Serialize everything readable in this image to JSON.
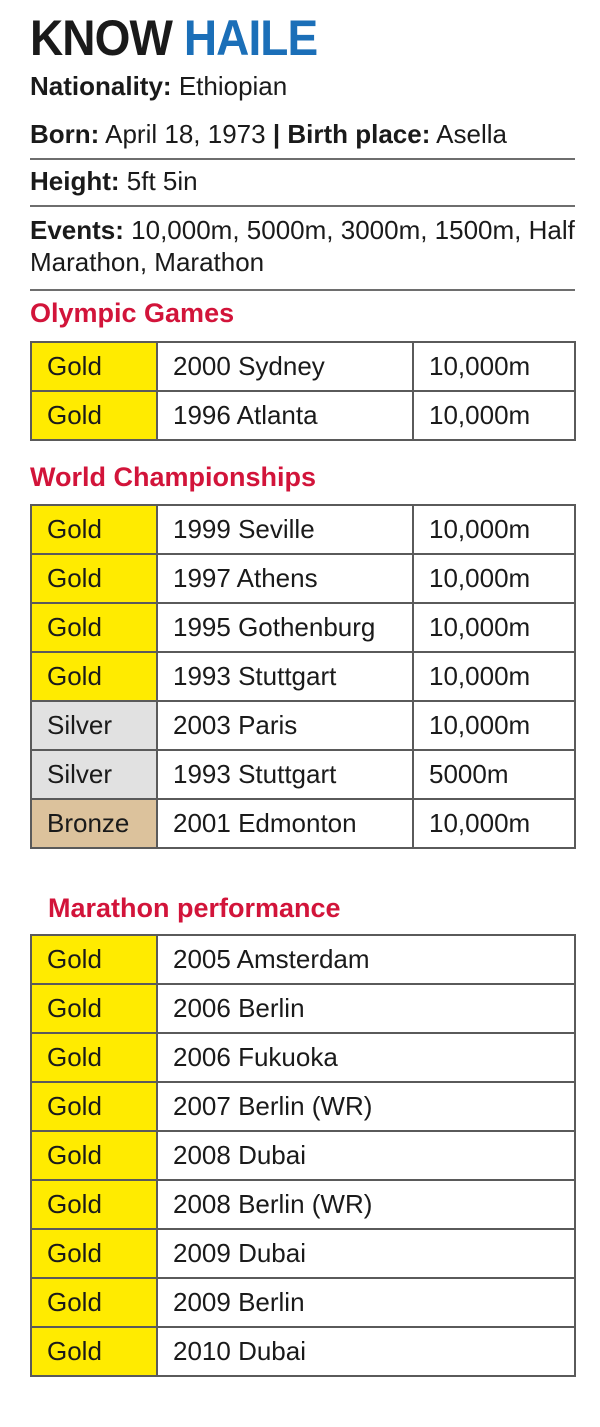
{
  "header": {
    "title_part1": "KNOW",
    "title_part2": "HAILE"
  },
  "profile": {
    "nationality_label": "Nationality:",
    "nationality_value": "Ethiopian",
    "born_label": "Born:",
    "born_value": "April 18, 1973",
    "separator": "|",
    "birthplace_label": "Birth place:",
    "birthplace_value": "Asella",
    "height_label": "Height:",
    "height_value": "5ft 5in",
    "events_label": "Events:",
    "events_value": "10,000m, 5000m, 3000m, 1500m, Half Marathon, Marathon"
  },
  "olympic": {
    "heading": "Olympic Games",
    "rows": [
      {
        "medal": "Gold",
        "venue": "2000 Sydney",
        "event": "10,000m",
        "tier": "gold"
      },
      {
        "medal": "Gold",
        "venue": "1996 Atlanta",
        "event": "10,000m",
        "tier": "gold"
      }
    ]
  },
  "world": {
    "heading": "World Championships",
    "rows": [
      {
        "medal": "Gold",
        "venue": "1999 Seville",
        "event": "10,000m",
        "tier": "gold"
      },
      {
        "medal": "Gold",
        "venue": "1997 Athens",
        "event": "10,000m",
        "tier": "gold"
      },
      {
        "medal": "Gold",
        "venue": "1995 Gothenburg",
        "event": "10,000m",
        "tier": "gold"
      },
      {
        "medal": "Gold",
        "venue": "1993 Stuttgart",
        "event": "10,000m",
        "tier": "gold"
      },
      {
        "medal": "Silver",
        "venue": "2003 Paris",
        "event": "10,000m",
        "tier": "silver"
      },
      {
        "medal": "Silver",
        "venue": "1993 Stuttgart",
        "event": "5000m",
        "tier": "silver"
      },
      {
        "medal": "Bronze",
        "venue": "2001 Edmonton",
        "event": "10,000m",
        "tier": "bronze"
      }
    ]
  },
  "marathon": {
    "heading": "Marathon performance",
    "rows": [
      {
        "medal": "Gold",
        "venue": "2005 Amsterdam",
        "tier": "gold"
      },
      {
        "medal": "Gold",
        "venue": "2006 Berlin",
        "tier": "gold"
      },
      {
        "medal": "Gold",
        "venue": "2006 Fukuoka",
        "tier": "gold"
      },
      {
        "medal": "Gold",
        "venue": "2007 Berlin (WR)",
        "tier": "gold"
      },
      {
        "medal": "Gold",
        "venue": "2008 Dubai",
        "tier": "gold"
      },
      {
        "medal": "Gold",
        "venue": "2008 Berlin (WR)",
        "tier": "gold"
      },
      {
        "medal": "Gold",
        "venue": "2009 Dubai",
        "tier": "gold"
      },
      {
        "medal": "Gold",
        "venue": "2009 Berlin",
        "tier": "gold"
      },
      {
        "medal": "Gold",
        "venue": "2010 Dubai",
        "tier": "gold"
      }
    ]
  },
  "colors": {
    "title_accent": "#1b6fb8",
    "section_heading": "#d2143a",
    "gold": "#ffeb00",
    "silver": "#e1e1e1",
    "bronze": "#dcc29c"
  }
}
